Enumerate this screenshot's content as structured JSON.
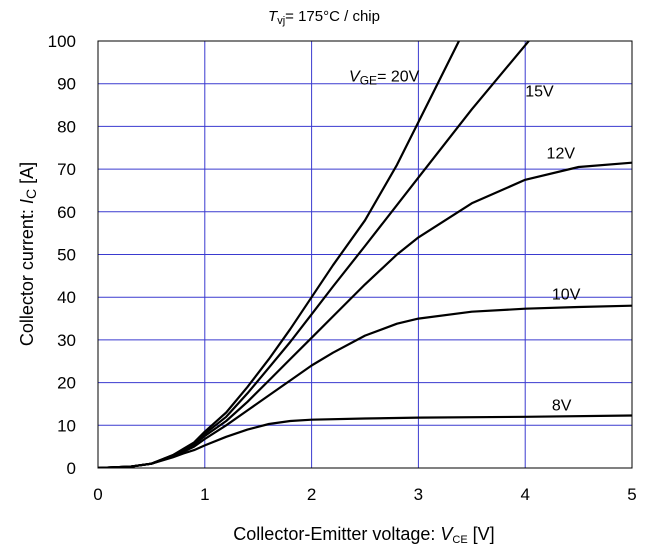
{
  "chart_data": {
    "type": "line",
    "title_var": "T",
    "title_sub": "vj",
    "title_rest": "= 175°C / chip",
    "xlabel_text": "Collector-Emitter voltage: ",
    "xlabel_var": "V",
    "xlabel_sub": "CE",
    "xlabel_unit": " [V]",
    "ylabel_text": "Collector current: ",
    "ylabel_var": "I",
    "ylabel_sub": "C",
    "ylabel_unit": " [A]",
    "xlim": [
      0,
      5
    ],
    "ylim": [
      0,
      100
    ],
    "xticks": [
      "0",
      "1",
      "2",
      "3",
      "4",
      "5"
    ],
    "yticks": [
      "0",
      "10",
      "20",
      "30",
      "40",
      "50",
      "60",
      "70",
      "80",
      "90",
      "100"
    ],
    "grid": true,
    "grid_color": "#3a3acf",
    "series_color": "#000000",
    "series": [
      {
        "name": "20V",
        "label_prefix_var": "V",
        "label_prefix_sub": "GE",
        "label_prefix_rest": "= ",
        "points": [
          [
            0,
            0
          ],
          [
            0.3,
            0.3
          ],
          [
            0.5,
            1
          ],
          [
            0.7,
            3
          ],
          [
            0.8,
            4.5
          ],
          [
            0.9,
            6
          ],
          [
            1.0,
            8.5
          ],
          [
            1.2,
            13
          ],
          [
            1.4,
            19
          ],
          [
            1.6,
            25.5
          ],
          [
            1.8,
            32.5
          ],
          [
            2.0,
            40
          ],
          [
            2.2,
            47.5
          ],
          [
            2.5,
            58
          ],
          [
            2.8,
            71
          ],
          [
            3.0,
            81
          ],
          [
            3.2,
            91
          ],
          [
            3.4,
            101
          ]
        ]
      },
      {
        "name": "15V",
        "points": [
          [
            0,
            0
          ],
          [
            0.3,
            0.3
          ],
          [
            0.5,
            1
          ],
          [
            0.7,
            3
          ],
          [
            0.8,
            4.3
          ],
          [
            0.9,
            5.8
          ],
          [
            1.0,
            8
          ],
          [
            1.2,
            12
          ],
          [
            1.4,
            17.5
          ],
          [
            1.6,
            23.5
          ],
          [
            1.8,
            29.5
          ],
          [
            2.0,
            36
          ],
          [
            2.2,
            42.5
          ],
          [
            2.5,
            52
          ],
          [
            3.0,
            68
          ],
          [
            3.5,
            84
          ],
          [
            4.0,
            99
          ],
          [
            4.05,
            100.5
          ]
        ]
      },
      {
        "name": "12V",
        "points": [
          [
            0,
            0
          ],
          [
            0.3,
            0.3
          ],
          [
            0.5,
            1
          ],
          [
            0.7,
            2.8
          ],
          [
            0.8,
            4
          ],
          [
            0.9,
            5.5
          ],
          [
            1.0,
            7.5
          ],
          [
            1.2,
            11
          ],
          [
            1.4,
            15.5
          ],
          [
            1.6,
            20.5
          ],
          [
            1.8,
            25.5
          ],
          [
            2.0,
            30.5
          ],
          [
            2.2,
            35.5
          ],
          [
            2.5,
            43
          ],
          [
            2.8,
            50
          ],
          [
            3.0,
            54
          ],
          [
            3.5,
            62
          ],
          [
            4.0,
            67.5
          ],
          [
            4.5,
            70.5
          ],
          [
            5.0,
            71.5
          ]
        ]
      },
      {
        "name": "10V",
        "points": [
          [
            0,
            0
          ],
          [
            0.3,
            0.3
          ],
          [
            0.5,
            1
          ],
          [
            0.7,
            2.7
          ],
          [
            0.8,
            3.8
          ],
          [
            0.9,
            5
          ],
          [
            1.0,
            6.8
          ],
          [
            1.2,
            10
          ],
          [
            1.4,
            13.5
          ],
          [
            1.6,
            17
          ],
          [
            1.8,
            20.5
          ],
          [
            2.0,
            24
          ],
          [
            2.2,
            27
          ],
          [
            2.5,
            31
          ],
          [
            2.8,
            33.8
          ],
          [
            3.0,
            35
          ],
          [
            3.5,
            36.6
          ],
          [
            4.0,
            37.3
          ],
          [
            4.5,
            37.7
          ],
          [
            5.0,
            38
          ]
        ]
      },
      {
        "name": "8V",
        "points": [
          [
            0,
            0
          ],
          [
            0.3,
            0.3
          ],
          [
            0.5,
            1
          ],
          [
            0.7,
            2.5
          ],
          [
            0.8,
            3.4
          ],
          [
            0.9,
            4.2
          ],
          [
            1.0,
            5.3
          ],
          [
            1.2,
            7.3
          ],
          [
            1.4,
            9
          ],
          [
            1.6,
            10.3
          ],
          [
            1.8,
            11
          ],
          [
            2.0,
            11.3
          ],
          [
            2.5,
            11.6
          ],
          [
            3.0,
            11.8
          ],
          [
            4.0,
            12
          ],
          [
            5.0,
            12.3
          ]
        ]
      }
    ]
  }
}
